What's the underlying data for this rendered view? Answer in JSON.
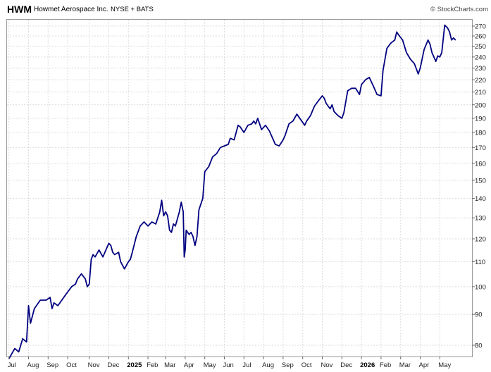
{
  "header": {
    "ticker": "HWM",
    "company": "Howmet Aerospace Inc.",
    "exchange": "NYSE + BATS",
    "copyright": "© StockCharts.com"
  },
  "chart_data": {
    "type": "line",
    "title": "",
    "xlabel": "",
    "ylabel": "",
    "yscale": "log",
    "ylim": [
      75,
      278
    ],
    "grid": true,
    "line_color": "#000080",
    "y_ticks": [
      80,
      90,
      100,
      110,
      120,
      130,
      140,
      150,
      160,
      170,
      180,
      190,
      200,
      210,
      220,
      230,
      240,
      250,
      260,
      270
    ],
    "x_ticks": [
      {
        "label": "Jul",
        "t": 0.0,
        "year": false
      },
      {
        "label": "Aug",
        "t": 1.0,
        "year": false
      },
      {
        "label": "Sep",
        "t": 2.0,
        "year": false
      },
      {
        "label": "Oct",
        "t": 3.0,
        "year": false
      },
      {
        "label": "Nov",
        "t": 4.1,
        "year": false
      },
      {
        "label": "Dec",
        "t": 5.1,
        "year": false
      },
      {
        "label": "2025",
        "t": 6.1,
        "year": true
      },
      {
        "label": "Feb",
        "t": 7.1,
        "year": false
      },
      {
        "label": "Mar",
        "t": 8.0,
        "year": false
      },
      {
        "label": "Apr",
        "t": 9.0,
        "year": false
      },
      {
        "label": "May",
        "t": 10.0,
        "year": false
      },
      {
        "label": "Jun",
        "t": 11.0,
        "year": false
      },
      {
        "label": "Jul",
        "t": 12.0,
        "year": false
      },
      {
        "label": "Aug",
        "t": 13.0,
        "year": false
      },
      {
        "label": "Sep",
        "t": 14.0,
        "year": false
      },
      {
        "label": "Oct",
        "t": 15.0,
        "year": false
      },
      {
        "label": "Nov",
        "t": 16.0,
        "year": false
      },
      {
        "label": "Dec",
        "t": 17.0,
        "year": false
      },
      {
        "label": "2026",
        "t": 18.0,
        "year": true
      },
      {
        "label": "Feb",
        "t": 19.0,
        "year": false
      },
      {
        "label": "Mar",
        "t": 20.0,
        "year": false
      },
      {
        "label": "Apr",
        "t": 21.0,
        "year": false
      },
      {
        "label": "May",
        "t": 22.0,
        "year": false
      }
    ],
    "series": [
      {
        "points": [
          [
            0.0,
            76
          ],
          [
            0.3,
            79
          ],
          [
            0.5,
            78
          ],
          [
            0.7,
            82
          ],
          [
            0.9,
            81
          ],
          [
            1.0,
            93
          ],
          [
            1.1,
            87
          ],
          [
            1.3,
            92
          ],
          [
            1.6,
            95
          ],
          [
            1.9,
            95
          ],
          [
            2.1,
            96
          ],
          [
            2.2,
            92
          ],
          [
            2.3,
            94
          ],
          [
            2.5,
            93
          ],
          [
            2.7,
            95
          ],
          [
            2.9,
            97
          ],
          [
            3.0,
            98
          ],
          [
            3.2,
            100
          ],
          [
            3.4,
            101
          ],
          [
            3.5,
            103
          ],
          [
            3.7,
            105
          ],
          [
            3.9,
            103
          ],
          [
            4.0,
            100
          ],
          [
            4.1,
            101
          ],
          [
            4.2,
            111
          ],
          [
            4.3,
            113
          ],
          [
            4.4,
            112
          ],
          [
            4.6,
            115
          ],
          [
            4.8,
            112
          ],
          [
            5.0,
            116
          ],
          [
            5.1,
            118
          ],
          [
            5.2,
            117
          ],
          [
            5.3,
            114
          ],
          [
            5.4,
            113
          ],
          [
            5.6,
            114
          ],
          [
            5.7,
            110
          ],
          [
            5.9,
            107
          ],
          [
            6.1,
            110
          ],
          [
            6.2,
            111
          ],
          [
            6.3,
            114
          ],
          [
            6.5,
            121
          ],
          [
            6.7,
            126
          ],
          [
            6.9,
            128
          ],
          [
            7.1,
            126
          ],
          [
            7.3,
            128
          ],
          [
            7.5,
            127
          ],
          [
            7.7,
            133
          ],
          [
            7.8,
            139
          ],
          [
            7.9,
            131
          ],
          [
            8.0,
            133
          ],
          [
            8.1,
            131
          ],
          [
            8.2,
            124
          ],
          [
            8.3,
            123
          ],
          [
            8.4,
            127
          ],
          [
            8.5,
            126
          ],
          [
            8.7,
            133
          ],
          [
            8.8,
            138
          ],
          [
            8.9,
            133
          ],
          [
            8.95,
            112
          ],
          [
            9.0,
            115
          ],
          [
            9.05,
            124
          ],
          [
            9.2,
            122
          ],
          [
            9.3,
            123
          ],
          [
            9.4,
            121
          ],
          [
            9.5,
            117
          ],
          [
            9.6,
            121
          ],
          [
            9.7,
            134
          ],
          [
            9.8,
            137
          ],
          [
            9.9,
            140
          ],
          [
            10.0,
            155
          ],
          [
            10.2,
            158
          ],
          [
            10.4,
            164
          ],
          [
            10.6,
            166
          ],
          [
            10.8,
            170
          ],
          [
            11.0,
            171
          ],
          [
            11.2,
            172
          ],
          [
            11.3,
            176
          ],
          [
            11.5,
            175
          ],
          [
            11.7,
            185
          ],
          [
            11.8,
            184
          ],
          [
            12.0,
            180
          ],
          [
            12.2,
            185
          ],
          [
            12.4,
            186
          ],
          [
            12.5,
            188
          ],
          [
            12.6,
            186
          ],
          [
            12.7,
            190
          ],
          [
            12.9,
            182
          ],
          [
            13.1,
            185
          ],
          [
            13.3,
            181
          ],
          [
            13.5,
            175
          ],
          [
            13.6,
            172
          ],
          [
            13.8,
            171
          ],
          [
            14.0,
            175
          ],
          [
            14.1,
            178
          ],
          [
            14.3,
            186
          ],
          [
            14.5,
            188
          ],
          [
            14.7,
            193
          ],
          [
            14.9,
            189
          ],
          [
            15.1,
            185
          ],
          [
            15.2,
            188
          ],
          [
            15.4,
            192
          ],
          [
            15.6,
            199
          ],
          [
            15.8,
            203
          ],
          [
            16.0,
            207
          ],
          [
            16.1,
            205
          ],
          [
            16.2,
            201
          ],
          [
            16.4,
            197
          ],
          [
            16.5,
            200
          ],
          [
            16.6,
            195
          ],
          [
            16.8,
            192
          ],
          [
            17.0,
            190
          ],
          [
            17.1,
            194
          ],
          [
            17.3,
            211
          ],
          [
            17.5,
            213
          ],
          [
            17.7,
            213
          ],
          [
            17.9,
            208
          ],
          [
            18.0,
            216
          ],
          [
            18.2,
            220
          ],
          [
            18.4,
            222
          ],
          [
            18.6,
            215
          ],
          [
            18.8,
            208
          ],
          [
            19.0,
            207
          ],
          [
            19.1,
            228
          ],
          [
            19.3,
            248
          ],
          [
            19.5,
            253
          ],
          [
            19.7,
            256
          ],
          [
            19.8,
            264
          ],
          [
            19.9,
            261
          ],
          [
            20.1,
            256
          ],
          [
            20.3,
            244
          ],
          [
            20.5,
            238
          ],
          [
            20.7,
            234
          ],
          [
            20.9,
            225
          ],
          [
            21.0,
            230
          ],
          [
            21.2,
            247
          ],
          [
            21.4,
            256
          ],
          [
            21.5,
            252
          ],
          [
            21.6,
            244
          ],
          [
            21.8,
            236
          ],
          [
            21.9,
            241
          ],
          [
            22.0,
            240
          ],
          [
            22.1,
            244
          ],
          [
            22.25,
            271
          ],
          [
            22.4,
            268
          ],
          [
            22.5,
            264
          ],
          [
            22.6,
            256
          ],
          [
            22.7,
            258
          ],
          [
            22.8,
            256
          ]
        ]
      }
    ]
  }
}
